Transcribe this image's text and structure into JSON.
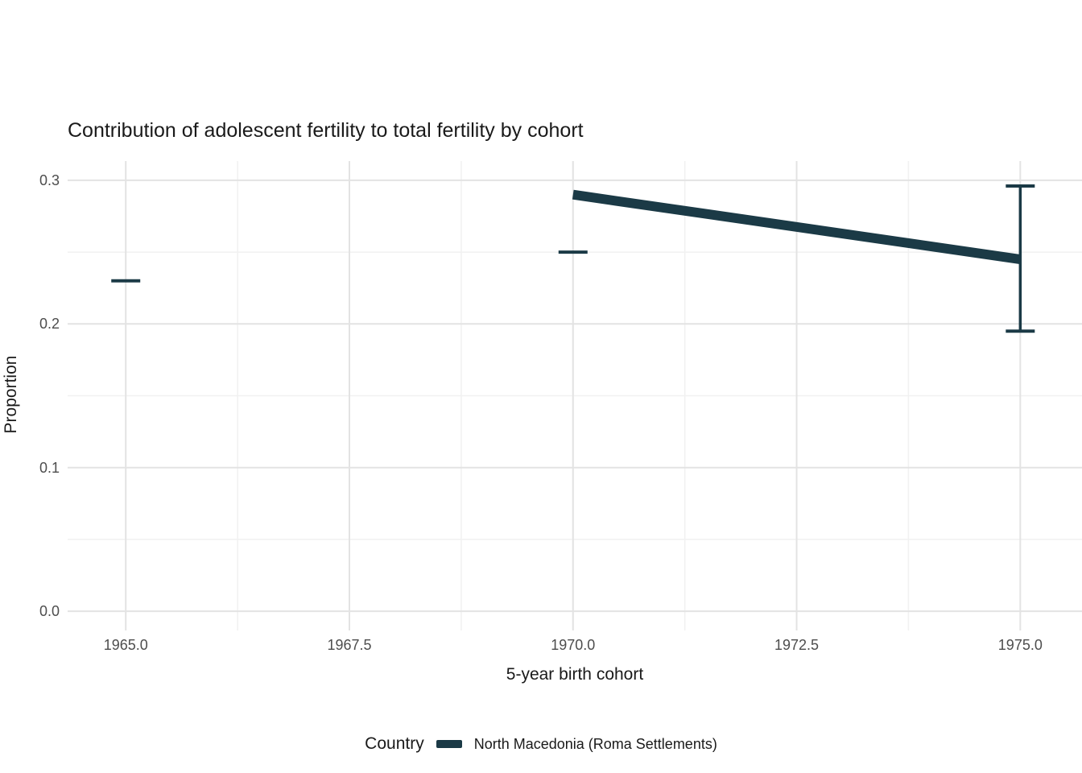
{
  "chart_data": {
    "type": "line",
    "title": "Contribution of adolescent fertility to total fertility by cohort",
    "xlabel": "5-year birth cohort",
    "ylabel": "Proportion",
    "legend_title": "Country",
    "legend_position": "bottom",
    "grid": true,
    "xlim": [
      1964.35,
      1975.69
    ],
    "ylim": [
      -0.0134,
      0.3134
    ],
    "x_ticks": [
      1965.0,
      1967.5,
      1970.0,
      1972.5,
      1975.0
    ],
    "x_tick_labels": [
      "1965.0",
      "1967.5",
      "1970.0",
      "1972.5",
      "1975.0"
    ],
    "y_ticks": [
      0.0,
      0.1,
      0.2,
      0.3
    ],
    "y_tick_labels": [
      "0.0",
      "0.1",
      "0.2",
      "0.3"
    ],
    "series": [
      {
        "name": "North Macedonia (Roma Settlements)",
        "color": "#1b3a46",
        "line": {
          "x": [
            1970.0,
            1975.0
          ],
          "y": [
            0.29,
            0.245
          ]
        },
        "error_bars": [
          {
            "x": 1965.0,
            "ymin": 0.23,
            "ymax": 0.23
          },
          {
            "x": 1970.0,
            "ymin": 0.25,
            "ymax": 0.25
          },
          {
            "x": 1975.0,
            "ymin": 0.195,
            "ymax": 0.296
          }
        ]
      }
    ]
  }
}
